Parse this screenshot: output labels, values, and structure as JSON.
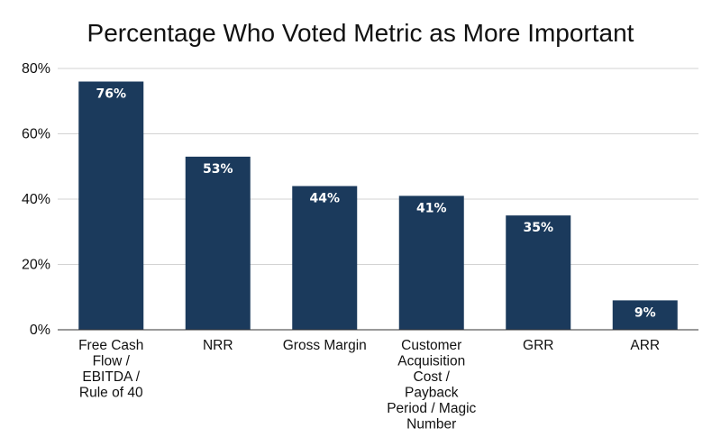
{
  "chart_data": {
    "type": "bar",
    "title": "Percentage Who Voted Metric as More Important",
    "categories": [
      "Free Cash Flow / EBITDA / Rule of 40",
      "NRR",
      "Gross Margin",
      "Customer Acquisition Cost / Payback Period / Magic Number",
      "GRR",
      "ARR"
    ],
    "category_lines": [
      [
        "Free Cash",
        "Flow /",
        "EBITDA /",
        "Rule of 40"
      ],
      [
        "NRR"
      ],
      [
        "Gross Margin"
      ],
      [
        "Customer",
        "Acquisition",
        "Cost /",
        "Payback",
        "Period / Magic",
        "Number"
      ],
      [
        "GRR"
      ],
      [
        "ARR"
      ]
    ],
    "values": [
      76,
      53,
      44,
      41,
      35,
      9
    ],
    "data_labels": [
      "76%",
      "53%",
      "44%",
      "41%",
      "35%",
      "9%"
    ],
    "y_ticks": [
      "0%",
      "20%",
      "40%",
      "60%",
      "80%"
    ],
    "y_tick_values": [
      0,
      20,
      40,
      60,
      80
    ],
    "ylim": [
      0,
      80
    ],
    "xlabel": "",
    "ylabel": "",
    "grid": true,
    "bar_color": "#1b3a5c",
    "label_color": "#ffffff"
  }
}
